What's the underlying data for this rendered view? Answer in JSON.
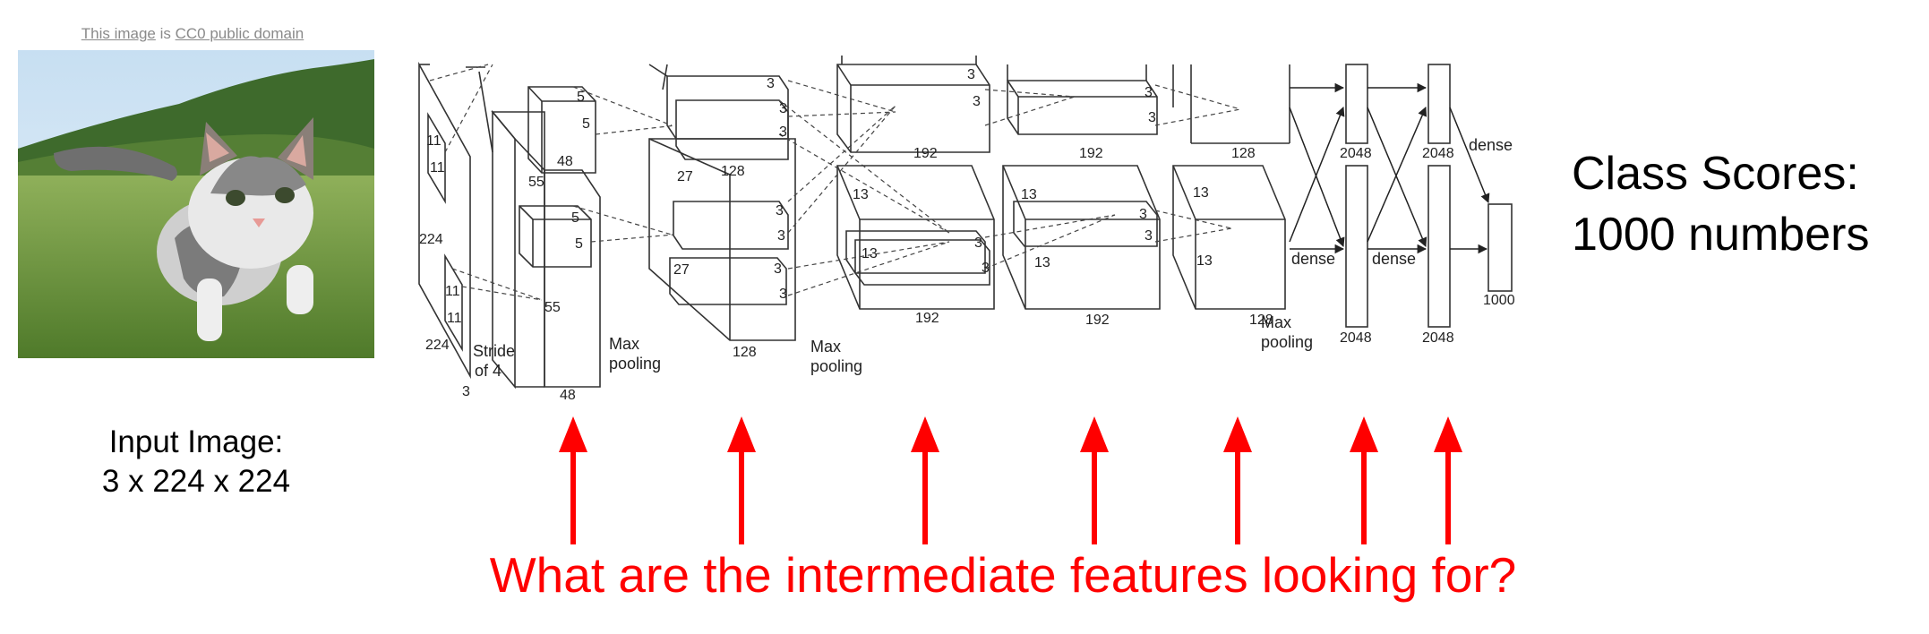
{
  "credit": {
    "link1": "This image",
    "mid": " is ",
    "link2": "CC0 public domain"
  },
  "input_caption": {
    "line1": "Input Image:",
    "line2": "3 x 224 x 224"
  },
  "output_caption": {
    "line1": "Class Scores:",
    "line2": "1000 numbers"
  },
  "question": "What are the intermediate features looking for?",
  "arch": {
    "n11a": "11",
    "n11b": "11",
    "n224a": "224",
    "n11c": "11",
    "n11d": "11",
    "n224b": "224",
    "stride1": "Stride",
    "stride2": "of 4",
    "n3": "3",
    "n55a": "55",
    "n55b": "55",
    "n48a": "48",
    "n48b": "48",
    "k5a": "5",
    "k5b": "5",
    "k5c": "5",
    "k5d": "5",
    "mp1a": "Max",
    "mp1b": "pooling",
    "n27a": "27",
    "n27b": "27",
    "n128a": "128",
    "n128b": "128",
    "k3a": "3",
    "k3b": "3",
    "k3c": "3",
    "k3d": "3",
    "k3e": "3",
    "k3f": "3",
    "k3g": "3",
    "mp2a": "Max",
    "mp2b": "pooling",
    "n13a": "13",
    "n13b": "13",
    "n192a": "192",
    "n192b": "192",
    "k3h": "3",
    "k3i": "3",
    "k3j": "3",
    "k3k": "3",
    "k3l": "3",
    "k3m": "3",
    "k3n": "3",
    "k3o": "3",
    "n13c": "13",
    "n13d": "13",
    "n192c": "192",
    "n192d": "192",
    "n13e": "13",
    "n13f": "13",
    "n128c": "128",
    "n128d": "128",
    "mp3a": "Max",
    "mp3b": "pooling",
    "d2048a": "2048",
    "d2048b": "2048",
    "d2048c": "2048",
    "d2048d": "2048",
    "dense1": "dense",
    "dense2": "dense",
    "dense3": "dense",
    "n1000": "1000"
  },
  "colors": {
    "arrow": "#ff0000",
    "line": "#333333",
    "question": "#ff0000"
  }
}
